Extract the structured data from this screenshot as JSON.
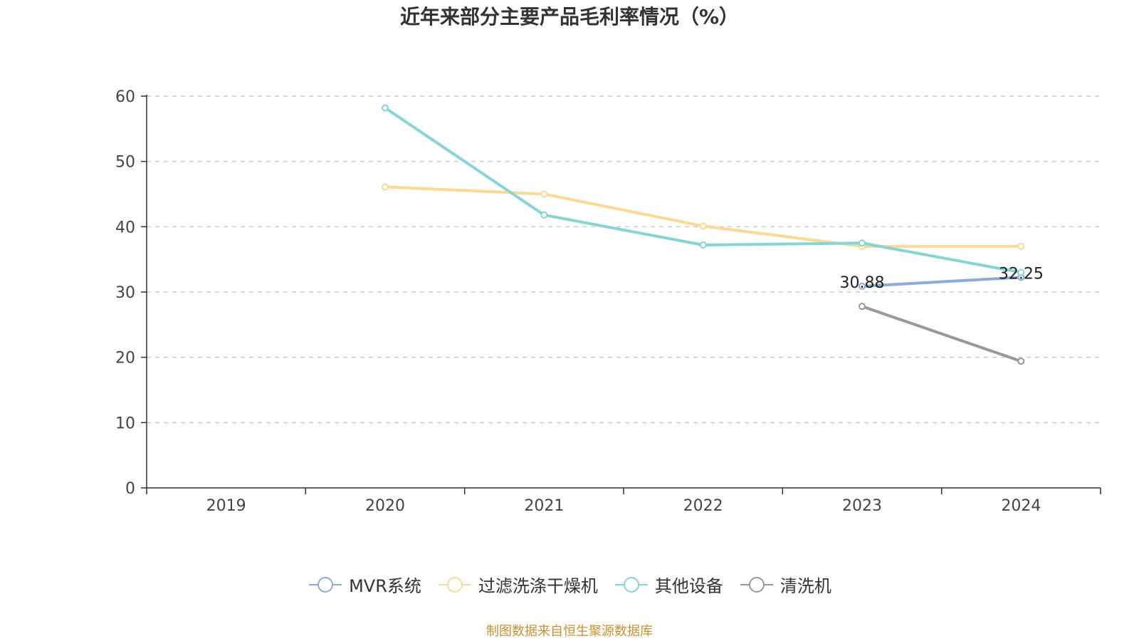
{
  "chart_data": {
    "type": "line",
    "title": "近年来部分主要产品毛利率情况（%）",
    "categories": [
      "2019",
      "2020",
      "2021",
      "2022",
      "2023",
      "2024"
    ],
    "ylim": [
      0,
      60
    ],
    "yticks": [
      "0",
      "10",
      "20",
      "30",
      "40",
      "50",
      "60"
    ],
    "grid": true,
    "legend_position": "bottom",
    "series": [
      {
        "name": "MVR系统",
        "color": "#8eaad8",
        "values": [
          null,
          null,
          null,
          null,
          30.88,
          32.25
        ],
        "labels": [
          "",
          "",
          "",
          "",
          "30.88",
          "32.25"
        ]
      },
      {
        "name": "过滤洗涤干燥机",
        "color": "#fcd998",
        "values": [
          null,
          46.1,
          45.0,
          40.1,
          37.0,
          37.0
        ],
        "labels": [
          "",
          "",
          "",
          "",
          "",
          ""
        ]
      },
      {
        "name": "其他设备",
        "color": "#86d4d6",
        "values": [
          null,
          58.2,
          41.8,
          37.2,
          37.5,
          33.0
        ],
        "labels": [
          "",
          "",
          "",
          "",
          "",
          ""
        ]
      },
      {
        "name": "清洗机",
        "color": "#999999",
        "values": [
          null,
          null,
          null,
          null,
          27.8,
          19.4
        ],
        "labels": [
          "",
          "",
          "",
          "",
          "",
          ""
        ]
      }
    ]
  },
  "source_note": "制图数据来自恒生聚源数据库"
}
